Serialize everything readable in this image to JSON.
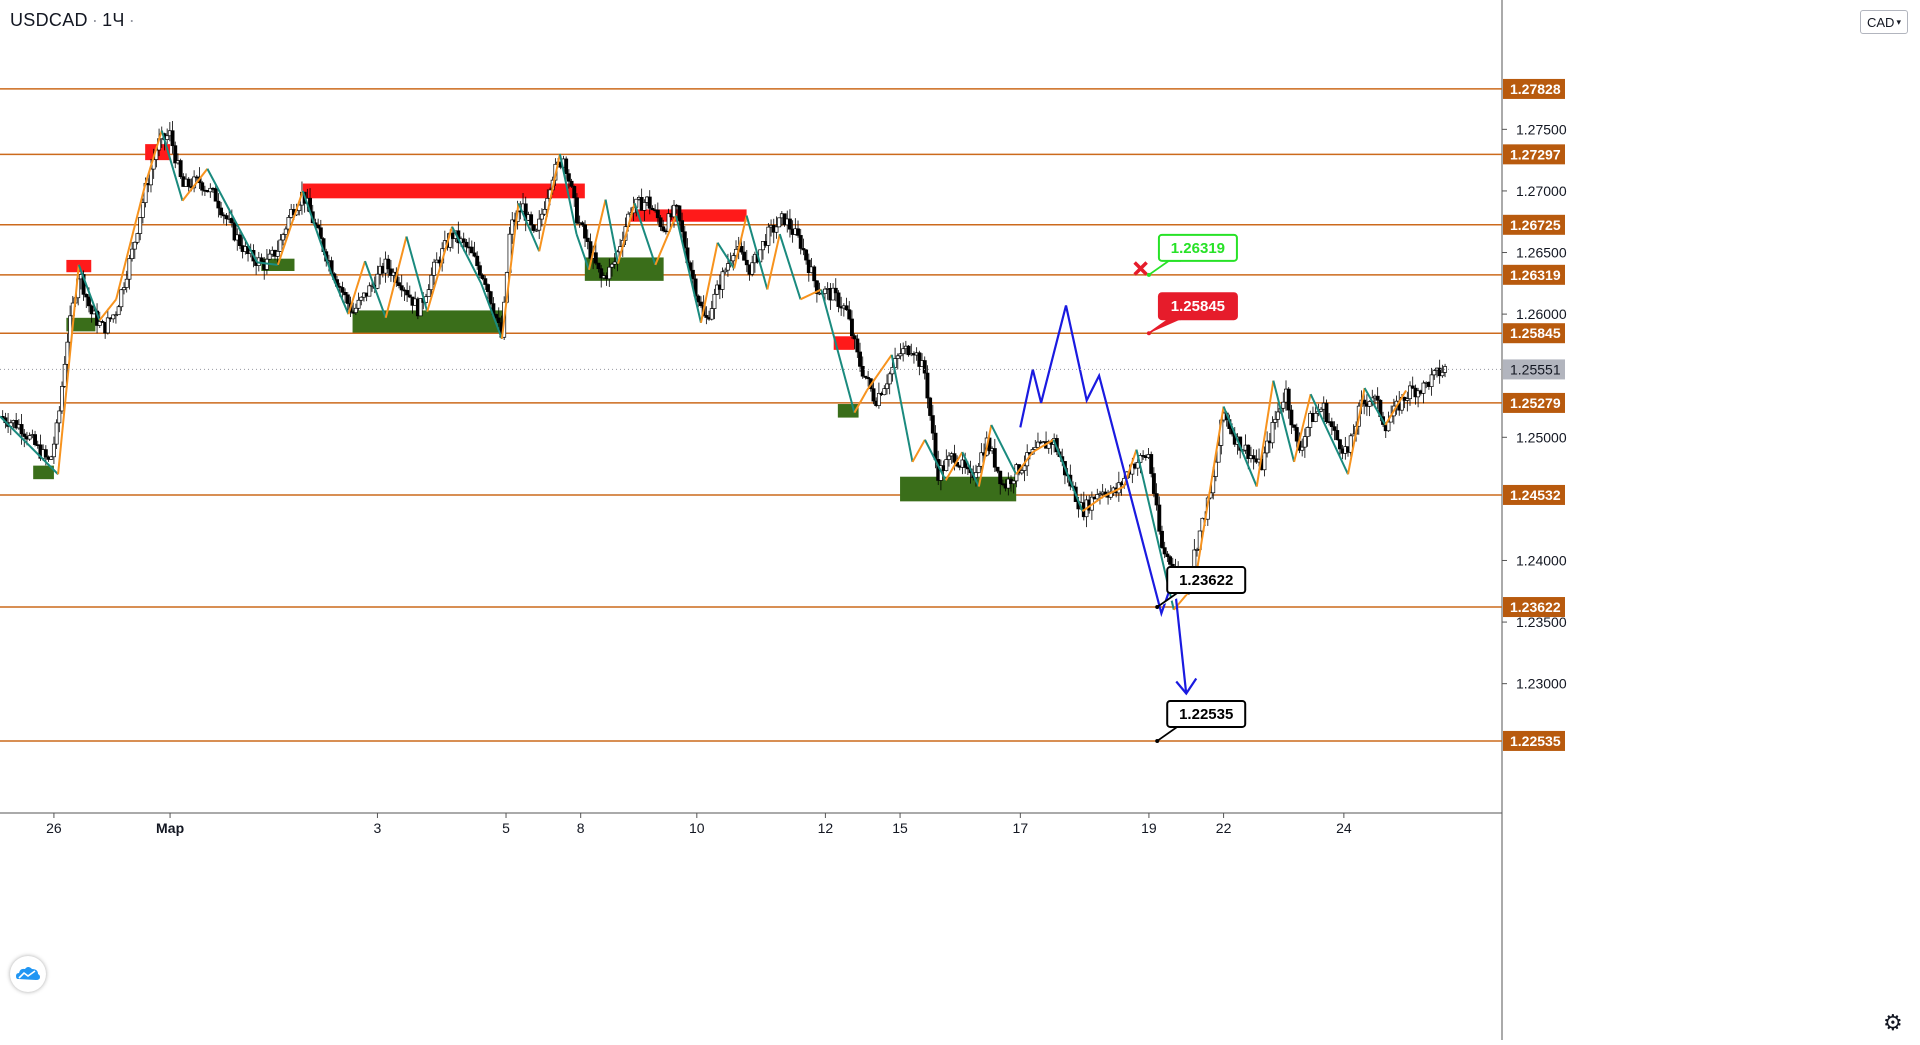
{
  "header": {
    "symbol": "USDCAD",
    "interval": "1Ч",
    "currency_button": "CAD"
  },
  "colors": {
    "level": "#cc6a1c",
    "level_label_bg": "#b85a0e",
    "up_zigzag": "#f7931e",
    "down_zigzag": "#1a8a7e",
    "supply": "#ff1a1a",
    "demand": "#3a6e1a",
    "projection": "#1a1ae0",
    "price_tag": "#b2b5be",
    "callout_green": "#27e227",
    "callout_red": "#e61c2b",
    "callout_black": "#000000"
  },
  "chart_data": {
    "type": "candlestick",
    "title": "USDCAD",
    "interval": "1Ч",
    "ylim": [
      1.2195,
      1.2855
    ],
    "y_ticks": [
      {
        "value": 1.23,
        "label": "1.23000"
      },
      {
        "value": 1.235,
        "label": "1.23500"
      },
      {
        "value": 1.24,
        "label": "1.24000"
      },
      {
        "value": 1.25,
        "label": "1.25000"
      },
      {
        "value": 1.26,
        "label": "1.26000"
      },
      {
        "value": 1.265,
        "label": "1.26500"
      },
      {
        "value": 1.27,
        "label": "1.27000"
      },
      {
        "value": 1.275,
        "label": "1.27500"
      }
    ],
    "x_ticks": [
      {
        "day": 26,
        "label": "26"
      },
      {
        "day": 28.8,
        "label": "Мар"
      },
      {
        "day": 33.8,
        "label": "3"
      },
      {
        "day": 36.9,
        "label": "5"
      },
      {
        "day": 38.7,
        "label": "8"
      },
      {
        "day": 41.5,
        "label": "10"
      },
      {
        "day": 44.6,
        "label": "12"
      },
      {
        "day": 46.4,
        "label": "15"
      },
      {
        "day": 49.3,
        "label": "17"
      },
      {
        "day": 52.4,
        "label": "19"
      },
      {
        "day": 54.2,
        "label": "22"
      },
      {
        "day": 57.1,
        "label": "24"
      }
    ],
    "x_range": [
      24.7,
      59.9
    ],
    "levels": [
      1.27828,
      1.27297,
      1.26725,
      1.26319,
      1.25845,
      1.25279,
      1.24532,
      1.23622,
      1.22535
    ],
    "level_labels": [
      "1.27828",
      "1.27297",
      "1.26725",
      "1.26319",
      "1.25845",
      "1.25279",
      "1.24532",
      "1.23622",
      "1.22535"
    ],
    "last_price": {
      "value": 1.25551,
      "label": "1.25551"
    },
    "close_path": [
      [
        24.7,
        1.2517
      ],
      [
        25.2,
        1.2509
      ],
      [
        25.6,
        1.2491
      ],
      [
        25.9,
        1.2479
      ],
      [
        26.1,
        1.2512
      ],
      [
        26.3,
        1.2575
      ],
      [
        26.6,
        1.2635
      ],
      [
        26.9,
        1.2601
      ],
      [
        27.2,
        1.2588
      ],
      [
        27.5,
        1.2603
      ],
      [
        27.9,
        1.2652
      ],
      [
        28.2,
        1.27
      ],
      [
        28.5,
        1.2738
      ],
      [
        28.8,
        1.2746
      ],
      [
        29.1,
        1.2703
      ],
      [
        29.5,
        1.2708
      ],
      [
        29.9,
        1.2695
      ],
      [
        30.3,
        1.2668
      ],
      [
        30.7,
        1.2647
      ],
      [
        31.1,
        1.264
      ],
      [
        31.4,
        1.2653
      ],
      [
        31.7,
        1.2682
      ],
      [
        32.0,
        1.2698
      ],
      [
        32.4,
        1.2662
      ],
      [
        32.8,
        1.2629
      ],
      [
        33.2,
        1.2601
      ],
      [
        33.6,
        1.262
      ],
      [
        34.0,
        1.264
      ],
      [
        34.4,
        1.2625
      ],
      [
        34.8,
        1.2603
      ],
      [
        35.2,
        1.264
      ],
      [
        35.6,
        1.2665
      ],
      [
        36.0,
        1.2652
      ],
      [
        36.4,
        1.2628
      ],
      [
        36.8,
        1.258
      ],
      [
        37.0,
        1.267
      ],
      [
        37.3,
        1.2688
      ],
      [
        37.6,
        1.266
      ],
      [
        38.0,
        1.2712
      ],
      [
        38.3,
        1.2728
      ],
      [
        38.6,
        1.268
      ],
      [
        38.9,
        1.2653
      ],
      [
        39.2,
        1.2628
      ],
      [
        39.5,
        1.264
      ],
      [
        39.9,
        1.2686
      ],
      [
        40.3,
        1.2692
      ],
      [
        40.7,
        1.267
      ],
      [
        41.0,
        1.2685
      ],
      [
        41.4,
        1.2629
      ],
      [
        41.7,
        1.2593
      ],
      [
        42.0,
        1.262
      ],
      [
        42.4,
        1.2655
      ],
      [
        42.8,
        1.2636
      ],
      [
        43.2,
        1.2664
      ],
      [
        43.6,
        1.2678
      ],
      [
        44.0,
        1.2658
      ],
      [
        44.4,
        1.2621
      ],
      [
        44.8,
        1.2615
      ],
      [
        45.1,
        1.2603
      ],
      [
        45.4,
        1.2562
      ],
      [
        45.8,
        1.253
      ],
      [
        46.1,
        1.2548
      ],
      [
        46.4,
        1.2568
      ],
      [
        46.7,
        1.2574
      ],
      [
        47.0,
        1.2552
      ],
      [
        47.3,
        1.247
      ],
      [
        47.7,
        1.2486
      ],
      [
        48.1,
        1.2466
      ],
      [
        48.5,
        1.2497
      ],
      [
        48.9,
        1.246
      ],
      [
        49.3,
        1.2476
      ],
      [
        49.7,
        1.249
      ],
      [
        50.1,
        1.2498
      ],
      [
        50.4,
        1.247
      ],
      [
        50.8,
        1.244
      ],
      [
        51.2,
        1.2457
      ],
      [
        51.6,
        1.2455
      ],
      [
        52.0,
        1.2478
      ],
      [
        52.4,
        1.2486
      ],
      [
        52.7,
        1.241
      ],
      [
        53.0,
        1.2395
      ],
      [
        53.3,
        1.238
      ],
      [
        53.6,
        1.242
      ],
      [
        53.9,
        1.2455
      ],
      [
        54.2,
        1.252
      ],
      [
        54.5,
        1.2498
      ],
      [
        54.8,
        1.2488
      ],
      [
        55.1,
        1.2475
      ],
      [
        55.4,
        1.251
      ],
      [
        55.7,
        1.2538
      ],
      [
        56.0,
        1.2488
      ],
      [
        56.3,
        1.2515
      ],
      [
        56.6,
        1.2525
      ],
      [
        56.9,
        1.25
      ],
      [
        57.2,
        1.2487
      ],
      [
        57.5,
        1.2525
      ],
      [
        57.8,
        1.2534
      ],
      [
        58.1,
        1.251
      ],
      [
        58.4,
        1.2525
      ],
      [
        58.7,
        1.2538
      ],
      [
        59.0,
        1.254
      ],
      [
        59.3,
        1.255
      ],
      [
        59.6,
        1.2557
      ]
    ],
    "zigzag": [
      [
        24.7,
        1.2517
      ],
      [
        26.1,
        1.247
      ],
      [
        26.6,
        1.264
      ],
      [
        27.1,
        1.2595
      ],
      [
        27.5,
        1.2612
      ],
      [
        28.2,
        1.2705
      ],
      [
        28.6,
        1.2749
      ],
      [
        29.1,
        1.2692
      ],
      [
        29.7,
        1.2718
      ],
      [
        30.9,
        1.2642
      ],
      [
        31.4,
        1.264
      ],
      [
        32.0,
        1.27
      ],
      [
        32.7,
        1.2632
      ],
      [
        33.1,
        1.26
      ],
      [
        33.5,
        1.2643
      ],
      [
        34.0,
        1.2597
      ],
      [
        34.5,
        1.2663
      ],
      [
        35.0,
        1.2602
      ],
      [
        35.6,
        1.2671
      ],
      [
        36.3,
        1.2625
      ],
      [
        36.8,
        1.258
      ],
      [
        37.2,
        1.269
      ],
      [
        37.7,
        1.2651
      ],
      [
        38.2,
        1.273
      ],
      [
        38.6,
        1.2665
      ],
      [
        38.9,
        1.2636
      ],
      [
        39.3,
        1.2693
      ],
      [
        39.6,
        1.2641
      ],
      [
        40.0,
        1.269
      ],
      [
        40.5,
        1.264
      ],
      [
        41.0,
        1.268
      ],
      [
        41.6,
        1.2593
      ],
      [
        42.0,
        1.2658
      ],
      [
        42.4,
        1.2637
      ],
      [
        42.7,
        1.268
      ],
      [
        43.2,
        1.262
      ],
      [
        43.5,
        1.2665
      ],
      [
        44.0,
        1.2612
      ],
      [
        44.5,
        1.262
      ],
      [
        45.3,
        1.252
      ],
      [
        45.6,
        1.2538
      ],
      [
        46.2,
        1.2567
      ],
      [
        46.7,
        1.248
      ],
      [
        47.0,
        1.2498
      ],
      [
        47.5,
        1.2465
      ],
      [
        47.9,
        1.2488
      ],
      [
        48.3,
        1.246
      ],
      [
        48.6,
        1.251
      ],
      [
        49.2,
        1.247
      ],
      [
        49.6,
        1.2488
      ],
      [
        50.1,
        1.2498
      ],
      [
        50.8,
        1.244
      ],
      [
        51.3,
        1.2452
      ],
      [
        51.8,
        1.246
      ],
      [
        52.1,
        1.249
      ],
      [
        53.0,
        1.236
      ],
      [
        53.5,
        1.238
      ],
      [
        54.2,
        1.2525
      ],
      [
        55.0,
        1.246
      ],
      [
        55.4,
        1.2546
      ],
      [
        55.9,
        1.248
      ],
      [
        56.3,
        1.2535
      ],
      [
        57.2,
        1.247
      ],
      [
        57.6,
        1.254
      ],
      [
        58.1,
        1.251
      ],
      [
        58.6,
        1.2538
      ]
    ],
    "supply_zones": [
      {
        "x0": 26.3,
        "x1": 26.9,
        "y0": 1.2634,
        "y1": 1.2644
      },
      {
        "x0": 28.2,
        "x1": 28.8,
        "y0": 1.2725,
        "y1": 1.2738
      },
      {
        "x0": 32.0,
        "x1": 38.8,
        "y0": 1.2694,
        "y1": 1.2706
      },
      {
        "x0": 39.9,
        "x1": 42.7,
        "y0": 1.2675,
        "y1": 1.2685
      },
      {
        "x0": 44.8,
        "x1": 45.3,
        "y0": 1.2571,
        "y1": 1.2582
      }
    ],
    "demand_zones": [
      {
        "x0": 25.5,
        "x1": 26.0,
        "y0": 1.2466,
        "y1": 1.2477
      },
      {
        "x0": 26.3,
        "x1": 27.0,
        "y0": 1.2586,
        "y1": 1.2597
      },
      {
        "x0": 31.0,
        "x1": 31.8,
        "y0": 1.2635,
        "y1": 1.2645
      },
      {
        "x0": 33.2,
        "x1": 36.9,
        "y0": 1.2585,
        "y1": 1.2603
      },
      {
        "x0": 38.8,
        "x1": 40.7,
        "y0": 1.2627,
        "y1": 1.2646
      },
      {
        "x0": 44.9,
        "x1": 45.4,
        "y0": 1.2516,
        "y1": 1.2527
      },
      {
        "x0": 46.4,
        "x1": 49.2,
        "y0": 1.2448,
        "y1": 1.2468
      }
    ],
    "projection": [
      [
        49.3,
        1.2508
      ],
      [
        49.6,
        1.2555
      ],
      [
        49.8,
        1.2528
      ],
      [
        50.4,
        1.2607
      ],
      [
        50.9,
        1.253
      ],
      [
        51.2,
        1.255
      ],
      [
        52.7,
        1.2357
      ],
      [
        53.0,
        1.2386
      ],
      [
        53.3,
        1.2292
      ]
    ],
    "callouts": [
      {
        "label": "1.26319",
        "style": "green",
        "x": 52.4,
        "y": 1.26319
      },
      {
        "label": "1.25845",
        "style": "red",
        "x": 52.4,
        "y": 1.25845
      },
      {
        "label": "1.23622",
        "style": "black",
        "x": 52.6,
        "y": 1.23622
      },
      {
        "label": "1.22535",
        "style": "black",
        "x": 52.6,
        "y": 1.22535
      }
    ],
    "x_marker": {
      "x": 52.2,
      "y": 1.2637
    },
    "grid": false
  }
}
